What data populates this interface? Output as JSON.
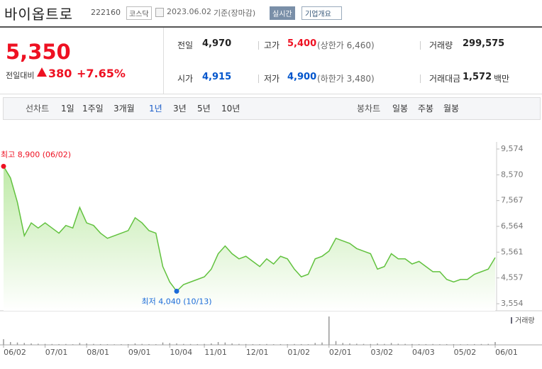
{
  "header": {
    "name": "바이옵트로",
    "code": "222160",
    "market": "코스닥",
    "date": "2023.06.02",
    "basis": "기준(장마감)",
    "badge": "실시간",
    "button": "기업개요"
  },
  "quote": {
    "price": "5,350",
    "change_label": "전일대비",
    "change": "380",
    "percent": "+7.65%",
    "stats": [
      [
        {
          "label": "전일",
          "value": "4,970"
        },
        {
          "label": "고가",
          "value": "5,400",
          "extra": "(상한가 6,460)"
        },
        {
          "label": "거래량",
          "value": "299,575"
        }
      ],
      [
        {
          "label": "시가",
          "value": "4,915"
        },
        {
          "label": "저가",
          "value": "4,900",
          "extra": "(하한가 3,480)"
        },
        {
          "label": "거래대금",
          "value": "1,572",
          "unit": "백만"
        }
      ]
    ]
  },
  "tabs": {
    "line_label": "선차트",
    "line_periods": [
      "1일",
      "1주일",
      "3개월",
      "1년",
      "3년",
      "5년",
      "10년"
    ],
    "selected": "1년",
    "candle_label": "봉차트",
    "candle_periods": [
      "일봉",
      "주봉",
      "월봉"
    ]
  },
  "chart_data": {
    "type": "area",
    "color": "#62c23f",
    "categories": [
      "06/02",
      null,
      null,
      null,
      null,
      null,
      "07/01",
      null,
      null,
      null,
      null,
      null,
      "08/01",
      null,
      null,
      null,
      null,
      null,
      "09/01",
      null,
      null,
      null,
      null,
      null,
      "10/04",
      null,
      null,
      null,
      null,
      "11/01",
      null,
      null,
      null,
      null,
      null,
      "12/01",
      null,
      null,
      null,
      null,
      null,
      "01/02",
      null,
      null,
      null,
      null,
      null,
      "02/01",
      null,
      null,
      null,
      null,
      null,
      "03/02",
      null,
      null,
      null,
      null,
      null,
      "04/03",
      null,
      null,
      null,
      null,
      null,
      "05/02",
      null,
      null,
      null,
      null,
      null,
      "06/01"
    ],
    "values": [
      8900,
      8450,
      7500,
      6200,
      6700,
      6500,
      6700,
      6500,
      6300,
      6600,
      6500,
      7300,
      6700,
      6600,
      6300,
      6100,
      6200,
      6300,
      6400,
      6900,
      6700,
      6400,
      6300,
      5000,
      4400,
      4040,
      4300,
      4400,
      4500,
      4600,
      4900,
      5500,
      5800,
      5500,
      5300,
      5400,
      5200,
      5000,
      5300,
      5100,
      5400,
      5300,
      4900,
      4600,
      4700,
      5300,
      5400,
      5600,
      6100,
      6000,
      5900,
      5700,
      5600,
      5500,
      4900,
      5000,
      5500,
      5300,
      5300,
      5100,
      5200,
      5000,
      4800,
      4800,
      4500,
      4400,
      4500,
      4500,
      4700,
      4800,
      4900,
      5350
    ],
    "volume": [
      600000,
      300000,
      250000,
      200000,
      150000,
      120000,
      100000,
      90000,
      80000,
      90000,
      70000,
      200000,
      150000,
      100000,
      80000,
      70000,
      60000,
      70000,
      80000,
      150000,
      100000,
      80000,
      70000,
      250000,
      180000,
      150000,
      100000,
      90000,
      80000,
      100000,
      150000,
      300000,
      250000,
      150000,
      100000,
      90000,
      80000,
      70000,
      90000,
      70000,
      80000,
      70000,
      90000,
      80000,
      70000,
      200000,
      250000,
      3000000,
      400000,
      200000,
      150000,
      120000,
      100000,
      90000,
      150000,
      100000,
      200000,
      120000,
      100000,
      90000,
      80000,
      80000,
      90000,
      70000,
      80000,
      70000,
      60000,
      60000,
      80000,
      90000,
      100000,
      300000
    ],
    "volume_label": "거래량",
    "max_label": "최고 8,900 (06/02)",
    "min_label": "최저 4,040 (10/13)",
    "ylim": [
      3554,
      9574
    ],
    "yticks": [
      {
        "value": 3554,
        "label": "3,554"
      },
      {
        "value": 4557,
        "label": "4,557"
      },
      {
        "value": 5561,
        "label": "5,561"
      },
      {
        "value": 6564,
        "label": "6,564"
      },
      {
        "value": 7567,
        "label": "7,567"
      },
      {
        "value": 8570,
        "label": "8,570"
      },
      {
        "value": 9574,
        "label": "9,574"
      }
    ]
  }
}
